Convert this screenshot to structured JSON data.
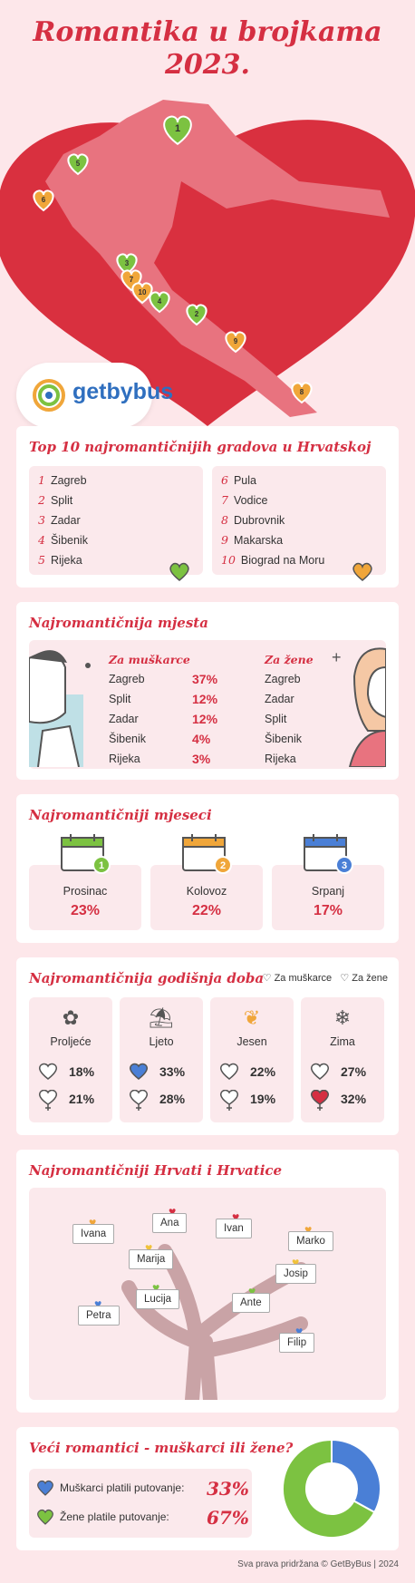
{
  "header": {
    "title_line1": "Romantika u brojkama",
    "title_line2": "2023."
  },
  "map": {
    "pins": [
      {
        "n": "1",
        "color": "#7cc241"
      },
      {
        "n": "5",
        "color": "#7cc241"
      },
      {
        "n": "6",
        "color": "#f0a63a"
      },
      {
        "n": "3",
        "color": "#7cc241"
      },
      {
        "n": "7",
        "color": "#f0a63a"
      },
      {
        "n": "10",
        "color": "#f0a63a"
      },
      {
        "n": "4",
        "color": "#7cc241"
      },
      {
        "n": "2",
        "color": "#7cc241"
      },
      {
        "n": "9",
        "color": "#f0a63a"
      },
      {
        "n": "8",
        "color": "#f0a63a"
      }
    ]
  },
  "brand": {
    "logo_text": "getbybus"
  },
  "top10": {
    "title": "Top 10 najromantičnijih gradova u Hrvatskoj",
    "left": [
      {
        "num": "1",
        "city": "Zagreb"
      },
      {
        "num": "2",
        "city": "Split"
      },
      {
        "num": "3",
        "city": "Zadar"
      },
      {
        "num": "4",
        "city": "Šibenik"
      },
      {
        "num": "5",
        "city": "Rijeka"
      }
    ],
    "right": [
      {
        "num": "6",
        "city": "Pula"
      },
      {
        "num": "7",
        "city": "Vodice"
      },
      {
        "num": "8",
        "city": "Dubrovnik"
      },
      {
        "num": "9",
        "city": "Makarska"
      },
      {
        "num": "10",
        "city": "Biograd na Moru"
      }
    ]
  },
  "places": {
    "title": "Najromantičnija mjesta",
    "men_header": "Za muškarce",
    "women_header": "Za žene",
    "men": [
      {
        "city": "Zagreb",
        "pct": "37%"
      },
      {
        "city": "Split",
        "pct": "12%"
      },
      {
        "city": "Zadar",
        "pct": "12%"
      },
      {
        "city": "Šibenik",
        "pct": "4%"
      },
      {
        "city": "Rijeka",
        "pct": "3%"
      }
    ],
    "women": [
      "Zagreb",
      "Zadar",
      "Split",
      "Šibenik",
      "Rijeka"
    ]
  },
  "months": {
    "title": "Najromantičniji mjeseci",
    "items": [
      {
        "rank": "1",
        "name": "Prosinac",
        "pct": "23%",
        "color": "#7cc241"
      },
      {
        "rank": "2",
        "name": "Kolovoz",
        "pct": "22%",
        "color": "#f0a63a"
      },
      {
        "rank": "3",
        "name": "Srpanj",
        "pct": "17%",
        "color": "#4a7fd6"
      }
    ]
  },
  "seasons": {
    "title": "Najromantičnija godišnja doba",
    "legend_men": "Za muškarce",
    "legend_women": "Za žene",
    "items": [
      {
        "name": "Proljeće",
        "men": "18%",
        "women": "21%"
      },
      {
        "name": "Ljeto",
        "men": "33%",
        "women": "28%"
      },
      {
        "name": "Jesen",
        "men": "22%",
        "women": "19%"
      },
      {
        "name": "Zima",
        "men": "27%",
        "women": "32%"
      }
    ]
  },
  "names": {
    "title": "Najromantičniji Hrvati i Hrvatice",
    "tags": [
      "Ivana",
      "Ana",
      "Ivan",
      "Marko",
      "Marija",
      "Josip",
      "Lucija",
      "Ante",
      "Petra",
      "Filip"
    ]
  },
  "gender": {
    "title": "Veći romantici - muškarci ili žene?",
    "men_label": "Muškarci platili putovanje:",
    "men_pct": "33%",
    "women_label": "Žene platile putovanje:",
    "women_pct": "67%",
    "chart_data": {
      "type": "pie",
      "categories": [
        "Muškarci platili putovanje:",
        "Žene platile putovanje:"
      ],
      "values": [
        33,
        67
      ],
      "colors": [
        "#4a7fd6",
        "#7cc241"
      ]
    }
  },
  "footer": {
    "text": "Sva prava pridržana © GetByBus | 2024"
  }
}
